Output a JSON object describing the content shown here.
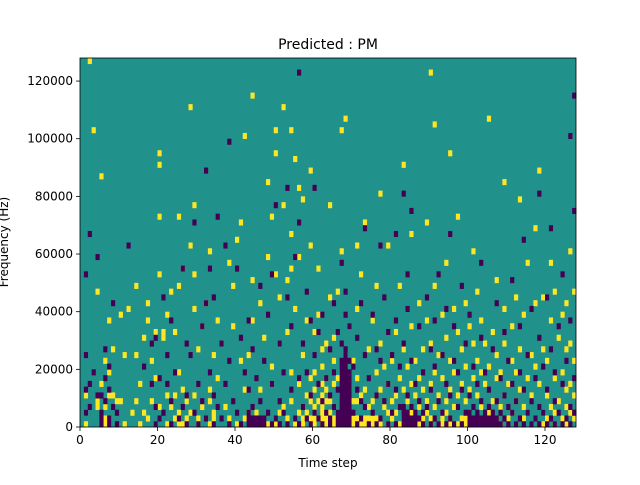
{
  "chart_data": {
    "type": "heatmap",
    "title": "Predicted : PM",
    "xlabel": "Time step",
    "ylabel": "Frequency (Hz)",
    "xlim": [
      0,
      128
    ],
    "ylim": [
      0,
      128000
    ],
    "x_ticks": [
      0,
      20,
      40,
      60,
      80,
      100,
      120
    ],
    "y_ticks": [
      0,
      20000,
      40000,
      60000,
      80000,
      100000,
      120000
    ],
    "x_tick_labels": [
      "0",
      "20",
      "40",
      "60",
      "80",
      "100",
      "120"
    ],
    "y_tick_labels": [
      "0",
      "20000",
      "40000",
      "60000",
      "80000",
      "100000",
      "120000"
    ],
    "grid": false,
    "value_levels": {
      "background": 0,
      "bright": 1,
      "dark": -1
    },
    "colors": {
      "background": "#21918c",
      "bright": "#fde725",
      "dark": "#440154"
    },
    "n_time_steps": 128,
    "n_frequency_bins": 64,
    "description_level": "estimated",
    "bright_cells_by_time": {
      "1": [
        0,
        2,
        5
      ],
      "2": [
        63
      ],
      "3": [
        51
      ],
      "4": [
        3,
        4,
        23
      ],
      "5": [
        7,
        43
      ],
      "6": [
        0,
        1,
        3,
        11
      ],
      "7": [
        0,
        1,
        5,
        9,
        18
      ],
      "8": [
        5,
        13
      ],
      "9": [
        4
      ],
      "10": [
        4,
        19
      ],
      "11": [
        0,
        12
      ],
      "12": [
        20
      ],
      "13": [
        2
      ],
      "14": [
        4,
        12,
        24
      ],
      "15": [
        0,
        7
      ],
      "16": [
        2,
        15
      ],
      "17": [
        1,
        18,
        21
      ],
      "18": [
        4,
        11
      ],
      "19": [
        0,
        8,
        16
      ],
      "20": [
        1,
        3,
        26,
        36,
        45,
        47
      ],
      "21": [
        15,
        16
      ],
      "22": [
        0,
        5,
        19
      ],
      "23": [
        3,
        23
      ],
      "24": [
        1,
        5,
        16
      ],
      "25": [
        0,
        2,
        9,
        24,
        36
      ],
      "26": [
        0,
        6,
        27
      ],
      "27": [
        1,
        4
      ],
      "28": [
        2,
        31,
        55
      ],
      "29": [
        5,
        20,
        26,
        38
      ],
      "30": [
        0,
        1,
        13
      ],
      "31": [
        3,
        17
      ],
      "32": [
        1,
        21
      ],
      "33": [
        0,
        4,
        6,
        30
      ],
      "34": [
        0,
        1,
        2,
        12
      ],
      "35": [
        8,
        18
      ],
      "36": [
        14
      ],
      "37": [
        3
      ],
      "38": [
        1,
        28
      ],
      "39": [
        17,
        24
      ],
      "40": [
        0,
        32
      ],
      "41": [
        11,
        35
      ],
      "42": [
        1,
        6,
        50
      ],
      "43": [
        2,
        12
      ],
      "44": [
        18,
        25,
        57
      ],
      "45": [
        2
      ],
      "46": [
        1,
        6,
        21
      ],
      "47": [
        15
      ],
      "48": [
        0,
        29,
        42
      ],
      "49": [
        7,
        10,
        36
      ],
      "50": [
        0,
        1,
        26,
        47,
        51
      ],
      "51": [
        2,
        14,
        22
      ],
      "52": [
        3,
        38,
        55
      ],
      "53": [
        0,
        1,
        16,
        25
      ],
      "54": [
        4,
        9,
        27,
        33,
        51
      ],
      "55": [
        0,
        1,
        20,
        46
      ],
      "56": [
        2,
        7,
        29,
        41
      ],
      "57": [
        0,
        1,
        3,
        12,
        39
      ],
      "58": [
        1,
        2,
        5,
        18
      ],
      "59": [
        0,
        1,
        4,
        8,
        31,
        44
      ],
      "60": [
        0,
        1,
        2,
        3,
        6,
        9,
        16
      ],
      "61": [
        1,
        4,
        19,
        27
      ],
      "62": [
        0,
        1,
        2,
        3,
        5,
        7,
        10,
        13
      ],
      "63": [
        0,
        1,
        2,
        4,
        6,
        8,
        14
      ],
      "64": [
        2,
        4,
        22,
        38
      ],
      "65": [
        0,
        1,
        3,
        7,
        11,
        15
      ],
      "66": [
        2,
        8,
        23
      ],
      "67": [
        0,
        1,
        5,
        9,
        30,
        51
      ],
      "68": [
        0,
        3,
        12,
        53
      ],
      "69": [
        1,
        6,
        17
      ],
      "70": [
        0,
        1,
        4,
        11
      ],
      "71": [
        0,
        1,
        4,
        8,
        20,
        31
      ],
      "72": [
        0,
        1,
        5,
        26
      ],
      "73": [
        0,
        1,
        6,
        35
      ],
      "74": [
        0,
        1,
        3,
        13
      ],
      "75": [
        0,
        1,
        4,
        18
      ],
      "76": [
        0,
        1,
        5,
        9,
        24
      ],
      "77": [
        0,
        1,
        6,
        14,
        40
      ],
      "78": [
        3,
        10
      ],
      "79": [
        0,
        2,
        7,
        31
      ],
      "80": [
        1,
        4,
        11
      ],
      "81": [
        2,
        5,
        16
      ],
      "82": [
        0,
        3,
        8,
        24
      ],
      "83": [
        1,
        6,
        13,
        45
      ],
      "84": [
        0,
        4,
        10
      ],
      "85": [
        2,
        7,
        17,
        33
      ],
      "86": [
        0,
        1,
        5,
        11
      ],
      "87": [
        0,
        1,
        3,
        8,
        21
      ],
      "88": [
        0,
        1,
        6,
        13
      ],
      "89": [
        2,
        4,
        18,
        35
      ],
      "90": [
        0,
        1,
        7,
        14,
        61
      ],
      "91": [
        3,
        9,
        24,
        52
      ],
      "92": [
        0,
        5,
        12
      ],
      "93": [
        0,
        1,
        8,
        19
      ],
      "94": [
        2,
        4,
        15,
        28
      ],
      "95": [
        0,
        1,
        6,
        11,
        47
      ],
      "96": [
        3,
        9,
        20
      ],
      "97": [
        0,
        5,
        16,
        36
      ],
      "98": [
        1,
        7,
        13
      ],
      "99": [
        0,
        1,
        4,
        10,
        21
      ],
      "100": [
        2,
        6,
        17
      ],
      "101": [
        0,
        8,
        14,
        30
      ],
      "102": [
        1,
        5,
        11,
        23
      ],
      "103": [
        0,
        3,
        9,
        18
      ],
      "104": [
        1,
        7,
        14
      ],
      "105": [
        2,
        10,
        53
      ],
      "106": [
        0,
        4,
        16
      ],
      "107": [
        1,
        8,
        12,
        25
      ],
      "108": [
        0,
        3,
        9
      ],
      "109": [
        5,
        14,
        20,
        42
      ],
      "110": [
        1,
        7
      ],
      "111": [
        2,
        11,
        17
      ],
      "112": [
        0,
        4,
        9,
        22
      ],
      "113": [
        6,
        13,
        39
      ],
      "114": [
        1,
        3,
        19
      ],
      "115": [
        2,
        8,
        28
      ],
      "116": [
        0,
        5,
        12
      ],
      "117": [
        1,
        10,
        21,
        34
      ],
      "118": [
        3,
        7,
        44
      ],
      "119": [
        0,
        2,
        13,
        22
      ],
      "120": [
        1,
        5,
        11
      ],
      "121": [
        3,
        18,
        28
      ],
      "122": [
        0,
        2,
        8,
        23
      ],
      "123": [
        4,
        15
      ],
      "124": [
        1,
        9,
        19
      ],
      "125": [
        0,
        3,
        6,
        13,
        21
      ],
      "126": [
        2,
        7,
        14,
        30
      ],
      "127": [
        1,
        5,
        11,
        23
      ]
    },
    "dark_cells_by_time": {
      "1": [
        2,
        6,
        12,
        26
      ],
      "2": [
        3,
        7,
        33
      ],
      "3": [
        9
      ],
      "4": [
        5,
        29
      ],
      "5": [
        0,
        1,
        2,
        5
      ],
      "6": [
        4,
        8,
        13
      ],
      "7": [
        0,
        1,
        6,
        10
      ],
      "8": [
        3,
        21
      ],
      "9": [
        0,
        2
      ],
      "12": [
        31
      ],
      "16": [
        10
      ],
      "18": [
        7,
        14
      ],
      "19": [
        0,
        3,
        15
      ],
      "20": [
        1,
        8
      ],
      "21": [
        2,
        22
      ],
      "22": [
        7,
        12
      ],
      "23": [
        0,
        4,
        18
      ],
      "24": [
        9
      ],
      "25": [
        1
      ],
      "26": [
        3,
        27
      ],
      "27": [
        0,
        5,
        14
      ],
      "28": [
        12
      ],
      "29": [
        2,
        35
      ],
      "30": [
        0,
        7
      ],
      "31": [
        4,
        17
      ],
      "32": [
        1,
        21,
        44
      ],
      "33": [
        9,
        27
      ],
      "34": [
        0,
        5,
        22
      ],
      "35": [
        3,
        36
      ],
      "36": [
        1,
        14
      ],
      "37": [
        7,
        31
      ],
      "38": [
        0,
        11,
        49
      ],
      "39": [
        4
      ],
      "40": [
        2,
        27
      ],
      "41": [
        0,
        15
      ],
      "42": [
        9
      ],
      "43": [
        0,
        1,
        2,
        6,
        18
      ],
      "44": [
        0,
        1,
        3,
        13
      ],
      "45": [
        0,
        1,
        8
      ],
      "46": [
        0,
        1,
        4,
        24
      ],
      "47": [
        0,
        1,
        11
      ],
      "48": [
        2,
        19
      ],
      "49": [
        0,
        7,
        26
      ],
      "50": [
        1,
        38
      ],
      "51": [
        0,
        4,
        14
      ],
      "52": [
        2,
        9
      ],
      "53": [
        0,
        22,
        41
      ],
      "54": [
        6,
        17
      ],
      "55": [
        1,
        29
      ],
      "56": [
        0,
        8,
        35,
        61
      ],
      "57": [
        3,
        14
      ],
      "58": [
        1,
        9,
        23
      ],
      "59": [
        0,
        5,
        18
      ],
      "60": [
        2,
        12,
        41
      ],
      "61": [
        1,
        7,
        16
      ],
      "62": [
        0,
        4,
        19
      ],
      "63": [
        2,
        8
      ],
      "64": [
        0,
        1,
        5,
        13
      ],
      "65": [
        3,
        9,
        21
      ],
      "66": [
        0,
        1,
        2,
        6,
        16
      ],
      "67": [
        0,
        1,
        2,
        3,
        4,
        5,
        6,
        7,
        8,
        9,
        10,
        11,
        14,
        28
      ],
      "68": [
        0,
        1,
        2,
        3,
        4,
        5,
        6,
        7,
        8,
        9,
        10,
        11,
        12,
        13,
        19,
        23
      ],
      "69": [
        0,
        1,
        2,
        3,
        4,
        5,
        6,
        7,
        8,
        9,
        11,
        17
      ],
      "70": [
        2,
        10
      ],
      "71": [
        0,
        6,
        15
      ],
      "72": [
        1,
        4,
        21
      ],
      "73": [
        3,
        12,
        34
      ],
      "74": [
        0,
        8
      ],
      "75": [
        2,
        19
      ],
      "76": [
        0,
        5,
        13
      ],
      "77": [
        1,
        11,
        31
      ],
      "78": [
        4,
        22
      ],
      "79": [
        0,
        7,
        16
      ],
      "80": [
        2,
        12
      ],
      "81": [
        0,
        6,
        18,
        33
      ],
      "82": [
        3,
        10
      ],
      "83": [
        0,
        1,
        2,
        3,
        14,
        40
      ],
      "84": [
        0,
        1,
        2,
        5,
        20,
        26
      ],
      "85": [
        0,
        1,
        3,
        11,
        37
      ],
      "86": [
        0,
        1,
        2,
        7
      ],
      "87": [
        1,
        4,
        17
      ],
      "88": [
        0,
        2,
        9
      ],
      "89": [
        3,
        22
      ],
      "90": [
        0,
        6,
        13
      ],
      "91": [
        1,
        10,
        18
      ],
      "92": [
        0,
        4,
        26
      ],
      "93": [
        2,
        12
      ],
      "94": [
        0,
        7,
        20
      ],
      "95": [
        1,
        5,
        33
      ],
      "96": [
        0,
        11,
        17
      ],
      "97": [
        3,
        9
      ],
      "98": [
        0,
        6,
        24
      ],
      "99": [
        2,
        14
      ],
      "100": [
        0,
        1,
        2,
        5,
        19
      ],
      "101": [
        0,
        1,
        3,
        10
      ],
      "102": [
        0,
        1,
        2,
        7
      ],
      "103": [
        0,
        1,
        4,
        15,
        28
      ],
      "104": [
        0,
        1,
        2,
        9
      ],
      "105": [
        0,
        1,
        3,
        6
      ],
      "106": [
        0,
        1,
        2,
        13
      ],
      "107": [
        0,
        1,
        4,
        21
      ],
      "108": [
        0,
        2,
        8
      ],
      "109": [
        1,
        5,
        16
      ],
      "110": [
        0,
        3,
        11
      ],
      "111": [
        2,
        7,
        25
      ],
      "112": [
        0,
        4
      ],
      "113": [
        1,
        9,
        17
      ],
      "114": [
        0,
        6,
        32
      ],
      "115": [
        2,
        12
      ],
      "116": [
        0,
        4,
        20
      ],
      "117": [
        1,
        8
      ],
      "118": [
        0,
        3,
        15,
        40
      ],
      "119": [
        2,
        10
      ],
      "120": [
        0,
        6,
        22
      ],
      "121": [
        1,
        13,
        34
      ],
      "122": [
        0,
        4,
        9
      ],
      "123": [
        2,
        17
      ],
      "124": [
        0,
        7,
        26
      ],
      "125": [
        1,
        11
      ],
      "126": [
        0,
        3,
        18,
        50
      ],
      "127": [
        2,
        8,
        37,
        57
      ]
    }
  }
}
